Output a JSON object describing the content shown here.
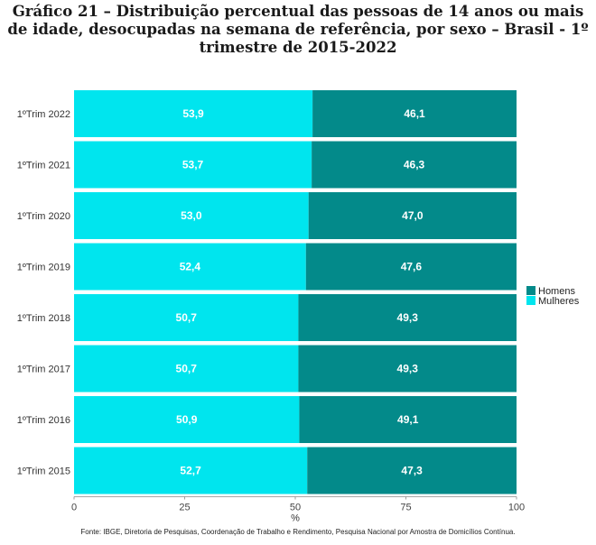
{
  "title": "Gráfico 21 – Distribuição percentual das pessoas de 14 anos ou mais de idade, desocupadas na semana de referência, por sexo – Brasil - 1º trimestre de 2015-2022",
  "source": "Fonte: IBGE, Diretoria de Pesquisas, Coordenação de Trabalho e Rendimento, Pesquisa Nacional por Amostra de Domicílios Contínua.",
  "chart_data": {
    "type": "bar",
    "orientation": "horizontal",
    "stacked": true,
    "title": "Gráfico 21 – Distribuição percentual das pessoas de 14 anos ou mais de idade, desocupadas na semana de referência, por sexo – Brasil - 1º trimestre de 2015-2022",
    "categories": [
      "1ºTrim 2022",
      "1ºTrim 2021",
      "1ºTrim 2020",
      "1ºTrim 2019",
      "1ºTrim 2018",
      "1ºTrim 2017",
      "1ºTrim 2016",
      "1ºTrim 2015"
    ],
    "series": [
      {
        "name": "Mulheres",
        "color": "#00e5ee",
        "values": [
          53.9,
          53.7,
          53.0,
          52.4,
          50.7,
          50.7,
          50.9,
          52.7
        ],
        "labels": [
          "53,9",
          "53,7",
          "53,0",
          "52,4",
          "50,7",
          "50,7",
          "50,9",
          "52,7"
        ]
      },
      {
        "name": "Homens",
        "color": "#038a8a",
        "values": [
          46.1,
          46.3,
          47.0,
          47.6,
          49.3,
          49.3,
          49.1,
          47.3
        ],
        "labels": [
          "46,1",
          "46,3",
          "47,0",
          "47,6",
          "49,3",
          "49,3",
          "49,1",
          "47,3"
        ]
      }
    ],
    "xlabel": "%",
    "ylabel": "",
    "xlim": [
      0,
      100
    ],
    "xticks": [
      0,
      25,
      50,
      75,
      100
    ],
    "grid": false,
    "legend": {
      "position": "right",
      "entries": [
        {
          "name": "Homens",
          "color": "#038a8a"
        },
        {
          "name": "Mulheres",
          "color": "#00e5ee"
        }
      ]
    }
  }
}
